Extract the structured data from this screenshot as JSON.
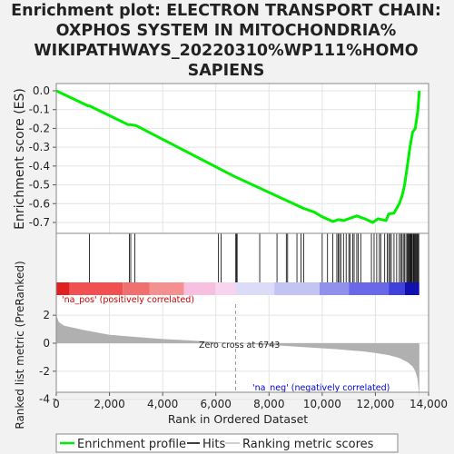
{
  "title_lines": [
    "Enrichment plot: ELECTRON TRANSPORT CHAIN:",
    "OXPHOS SYSTEM IN MITOCHONDRIA%",
    "WIKIPATHWAYS_20220310%WP111%HOMO",
    "SAPIENS"
  ],
  "top_panel": {
    "ylabel": "Enrichment score (ES)",
    "yticks": [
      "0.0",
      "-0.1",
      "-0.2",
      "-0.3",
      "-0.4",
      "-0.5",
      "-0.6",
      "-0.7"
    ]
  },
  "bottom_panel": {
    "ylabel": "Ranked list metric (PreRanked)",
    "yticks": [
      "2",
      "0",
      "-2",
      "-4"
    ],
    "xlabel": "Rank in Ordered Dataset",
    "xticks": [
      "0",
      "2,000",
      "4,000",
      "6,000",
      "8,000",
      "10,000",
      "12,000",
      "14,000"
    ],
    "zero_cross_label": "Zero cross at 6743",
    "pos_label": "'na_pos' (positively correlated)",
    "neg_label": "'na_neg' (negatively correlated)"
  },
  "legend": {
    "items": [
      {
        "label": "Enrichment profile",
        "color": "#00ee00"
      },
      {
        "label": "Hits",
        "color": "#000000"
      },
      {
        "label": "Ranking metric scores",
        "color": "#c0c0c0"
      }
    ]
  },
  "colors": {
    "es_line": "#00ee00",
    "metric_fill": "#b0b0b0",
    "pos_label": "#cc0000",
    "neg_label": "#0000cc"
  },
  "chart_data": {
    "type": "line",
    "x_range": [
      0,
      14000
    ],
    "es_ylim": [
      -0.73,
      0.02
    ],
    "metric_ylim": [
      -4,
      3
    ],
    "zero_cross": 6743,
    "n_genes": 13650,
    "es_profile": {
      "x": [
        0,
        1200,
        1250,
        2700,
        2800,
        3000,
        6700,
        9300,
        9700,
        10000,
        10400,
        10600,
        10800,
        11100,
        11300,
        11600,
        11900,
        12100,
        12400,
        12500,
        12700,
        12900,
        13000,
        13100,
        13200,
        13300,
        13400,
        13500,
        13600,
        13650
      ],
      "y": [
        0.0,
        -0.08,
        -0.08,
        -0.18,
        -0.18,
        -0.185,
        -0.455,
        -0.625,
        -0.645,
        -0.67,
        -0.695,
        -0.685,
        -0.69,
        -0.675,
        -0.665,
        -0.68,
        -0.7,
        -0.68,
        -0.69,
        -0.655,
        -0.65,
        -0.6,
        -0.56,
        -0.5,
        -0.4,
        -0.3,
        -0.22,
        -0.2,
        -0.1,
        0.0
      ]
    },
    "hit_ranks": [
      1250,
      2750,
      2800,
      2950,
      6100,
      6200,
      6750,
      6780,
      6800,
      7650,
      8300,
      8650,
      8700,
      9050,
      9200,
      9300,
      10000,
      10200,
      10400,
      10550,
      10600,
      10650,
      10700,
      10800,
      10900,
      11000,
      11050,
      11150,
      11200,
      11300,
      11350,
      11450,
      11850,
      11950,
      12050,
      12150,
      12200,
      12350,
      12450,
      12500,
      12550,
      12600,
      12700,
      12800,
      12900,
      12950,
      13000,
      13050,
      13100,
      13150,
      13200,
      13230,
      13260,
      13290,
      13320,
      13350,
      13380,
      13420,
      13450,
      13480,
      13510,
      13540,
      13570,
      13600,
      13630
    ],
    "metric": {
      "x": [
        0,
        20,
        100,
        300,
        1000,
        2000,
        3000,
        4000,
        5000,
        6000,
        6743,
        7500,
        8500,
        9500,
        10500,
        11500,
        12000,
        12500,
        12900,
        13200,
        13400,
        13500,
        13580,
        13620,
        13650
      ],
      "y": [
        2.6,
        1.9,
        1.5,
        1.25,
        0.95,
        0.6,
        0.45,
        0.3,
        0.2,
        0.08,
        0.0,
        -0.08,
        -0.18,
        -0.3,
        -0.42,
        -0.58,
        -0.7,
        -0.85,
        -1.05,
        -1.35,
        -1.65,
        -2.0,
        -2.5,
        -3.2,
        -3.9
      ]
    },
    "heatmap_bands": [
      {
        "from": 0,
        "to": 500,
        "color": "#e02020"
      },
      {
        "from": 500,
        "to": 2500,
        "color": "#f05050"
      },
      {
        "from": 2500,
        "to": 3500,
        "color": "#f07070"
      },
      {
        "from": 3500,
        "to": 4800,
        "color": "#f49090"
      },
      {
        "from": 4800,
        "to": 6000,
        "color": "#f8c0e0"
      },
      {
        "from": 6000,
        "to": 6743,
        "color": "#f8d4ee"
      },
      {
        "from": 6743,
        "to": 8200,
        "color": "#dcdcf8"
      },
      {
        "from": 8200,
        "to": 9900,
        "color": "#c4c4f4"
      },
      {
        "from": 9900,
        "to": 11000,
        "color": "#9090ee"
      },
      {
        "from": 11000,
        "to": 12500,
        "color": "#6868e8"
      },
      {
        "from": 12500,
        "to": 13100,
        "color": "#4040dc"
      },
      {
        "from": 13100,
        "to": 13650,
        "color": "#1010b0"
      }
    ]
  }
}
